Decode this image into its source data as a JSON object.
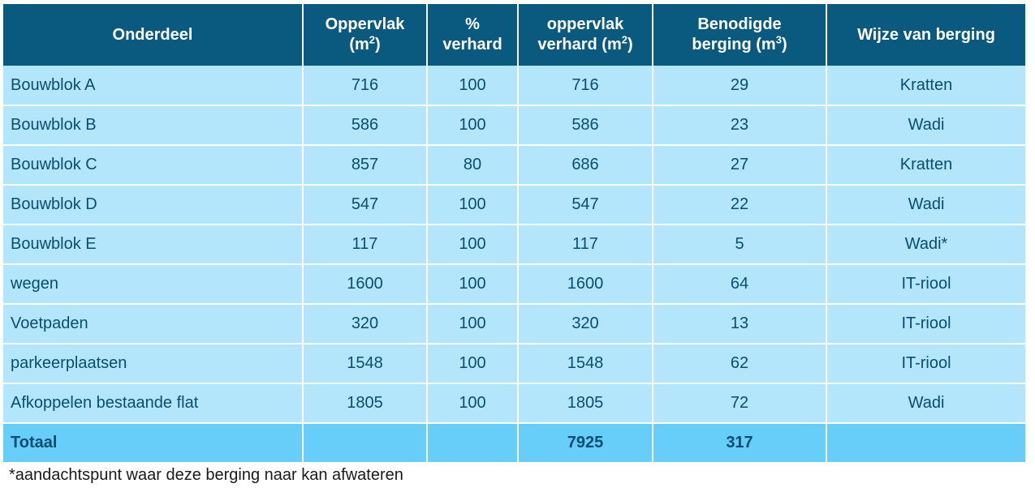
{
  "headers": [
    {
      "text": "Onderdeel"
    },
    {
      "text": "Oppervlak",
      "unit_pre": "(m",
      "unit_sup": "2",
      "unit_post": ")"
    },
    {
      "text": "%",
      "line2": "verhard"
    },
    {
      "text": "oppervlak",
      "unit_pre": "verhard (m",
      "unit_sup": "2",
      "unit_post": ")"
    },
    {
      "text": "Benodigde",
      "unit_pre": "berging (m",
      "unit_sup": "3",
      "unit_post": ")"
    },
    {
      "text": "Wijze van berging"
    }
  ],
  "rows": [
    [
      "Bouwblok A",
      "716",
      "100",
      "716",
      "29",
      "Kratten"
    ],
    [
      "Bouwblok B",
      "586",
      "100",
      "586",
      "23",
      "Wadi"
    ],
    [
      "Bouwblok C",
      "857",
      "80",
      "686",
      "27",
      "Kratten"
    ],
    [
      "Bouwblok D",
      "547",
      "100",
      "547",
      "22",
      "Wadi"
    ],
    [
      "Bouwblok E",
      "117",
      "100",
      "117",
      "5",
      "Wadi*"
    ],
    [
      "wegen",
      "1600",
      "100",
      "1600",
      "64",
      "IT-riool"
    ],
    [
      "Voetpaden",
      "320",
      "100",
      "320",
      "13",
      "IT-riool"
    ],
    [
      "parkeerplaatsen",
      "1548",
      "100",
      "1548",
      "62",
      "IT-riool"
    ],
    [
      "Afkoppelen bestaande flat",
      "1805",
      "100",
      "1805",
      "72",
      "Wadi"
    ]
  ],
  "total": [
    "Totaal",
    "",
    "",
    "7925",
    "317",
    ""
  ],
  "footnote": "*aandachtspunt waar deze berging naar kan afwateren"
}
